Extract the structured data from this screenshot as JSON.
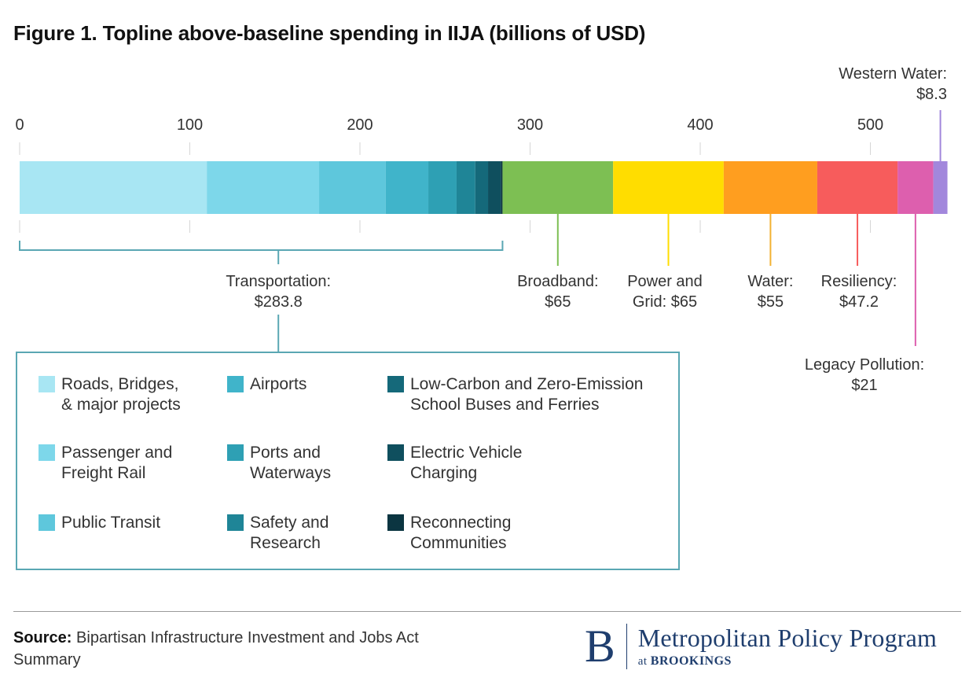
{
  "title": "Figure 1. Topline above-baseline spending in IIJA (billions of USD)",
  "chart_data": {
    "type": "bar",
    "orientation": "horizontal-stacked",
    "xlim": [
      0,
      545
    ],
    "ticks": [
      0,
      100,
      200,
      300,
      400,
      500
    ],
    "segments": [
      {
        "name": "Roads, Bridges, & major projects",
        "value": 110,
        "color": "#a8e6f3",
        "group": "Transportation"
      },
      {
        "name": "Passenger and Freight Rail",
        "value": 66,
        "color": "#7dd7ea",
        "group": "Transportation"
      },
      {
        "name": "Public Transit",
        "value": 39.2,
        "color": "#5ec7dc",
        "group": "Transportation"
      },
      {
        "name": "Airports",
        "value": 25,
        "color": "#40b4ca",
        "group": "Transportation"
      },
      {
        "name": "Ports and Waterways",
        "value": 16.6,
        "color": "#2ea0b4",
        "group": "Transportation"
      },
      {
        "name": "Safety and Research",
        "value": 11,
        "color": "#1f8597",
        "group": "Transportation"
      },
      {
        "name": "Low-Carbon and Zero-Emission School Buses and Ferries",
        "value": 7.5,
        "color": "#15697a",
        "group": "Transportation"
      },
      {
        "name": "Electric Vehicle Charging",
        "value": 7.5,
        "color": "#0f4f5e",
        "group": "Transportation"
      },
      {
        "name": "Reconnecting Communities",
        "value": 1,
        "color": "#0b3541",
        "group": "Transportation"
      },
      {
        "name": "Broadband",
        "value": 65,
        "color": "#7dbf53"
      },
      {
        "name": "Power and Grid",
        "value": 65,
        "color": "#ffdd00"
      },
      {
        "name": "Water",
        "value": 55,
        "color": "#ff9e1f"
      },
      {
        "name": "Resiliency",
        "value": 47.2,
        "color": "#f75c5c"
      },
      {
        "name": "Legacy Pollution",
        "value": 21,
        "color": "#dd5fae"
      },
      {
        "name": "Western Water",
        "value": 8.3,
        "color": "#a287dc"
      }
    ],
    "annotations": [
      {
        "key": "transportation",
        "line1": "Transportation:",
        "line2": "$283.8",
        "color": "#5aa7b3"
      },
      {
        "key": "broadband",
        "line1": "Broadband:",
        "line2": "$65",
        "color": "#7dbf53"
      },
      {
        "key": "power",
        "line1": "Power and",
        "line2": "Grid: $65",
        "color": "#ffdd00"
      },
      {
        "key": "water",
        "line1": "Water:",
        "line2": "$55",
        "color": "#f2b233"
      },
      {
        "key": "resiliency",
        "line1": "Resiliency:",
        "line2": "$47.2",
        "color": "#f75c5c"
      },
      {
        "key": "legacy",
        "line1": "Legacy Pollution:",
        "line2": "$21",
        "color": "#dd5fae"
      },
      {
        "key": "western",
        "line1": "Western Water:",
        "line2": "$8.3",
        "color": "#a287dc"
      }
    ]
  },
  "legend": [
    {
      "label": "Roads, Bridges,\n& major projects",
      "color": "#a8e6f3"
    },
    {
      "label": "Passenger and\nFreight Rail",
      "color": "#7dd7ea"
    },
    {
      "label": "Public Transit",
      "color": "#5ec7dc"
    },
    {
      "label": "Airports",
      "color": "#40b4ca"
    },
    {
      "label": "Ports and\nWaterways",
      "color": "#2ea0b4"
    },
    {
      "label": "Safety and\nResearch",
      "color": "#1f8597"
    },
    {
      "label": "Low-Carbon and Zero-Emission\nSchool Buses and Ferries",
      "color": "#15697a"
    },
    {
      "label": "Electric Vehicle\nCharging",
      "color": "#0f4f5e"
    },
    {
      "label": "Reconnecting\nCommunities",
      "color": "#0b3541"
    }
  ],
  "footer": {
    "source_label": "Source:",
    "source_text": "Bipartisan Infrastructure Investment and Jobs Act Summary",
    "brand_mark": "B",
    "brand_name": "Metropolitan Policy Program",
    "brand_sub_prefix": "at",
    "brand_sub_name": "BROOKINGS"
  }
}
